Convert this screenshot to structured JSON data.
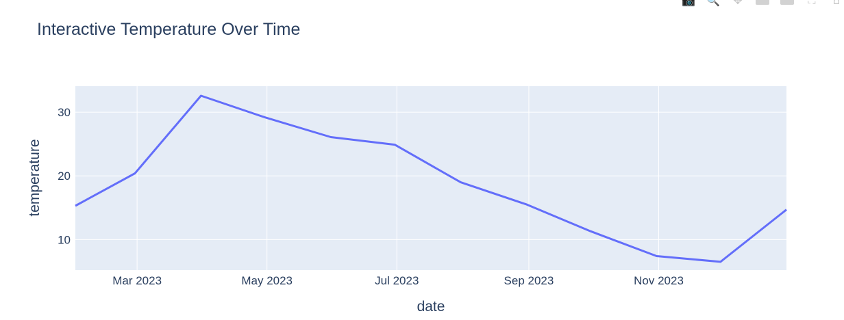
{
  "chart_data": {
    "type": "line",
    "title": "Interactive Temperature Over Time",
    "xlabel": "date",
    "ylabel": "temperature",
    "x": [
      "2023-01-31",
      "2023-02-28",
      "2023-03-31",
      "2023-04-30",
      "2023-05-31",
      "2023-06-30",
      "2023-07-31",
      "2023-08-31",
      "2023-09-30",
      "2023-10-31",
      "2023-11-30",
      "2023-12-31"
    ],
    "series": [
      {
        "values": [
          15.3,
          20.4,
          32.6,
          29.2,
          26.1,
          24.9,
          19.0,
          15.5,
          11.3,
          7.4,
          6.5,
          14.7
        ]
      }
    ],
    "xlim": [
      "2023-01-31",
      "2023-12-31"
    ],
    "ylim": [
      5.2,
      34.1
    ],
    "x_ticks": [
      {
        "date": "2023-03-01",
        "label": "Mar 2023"
      },
      {
        "date": "2023-05-01",
        "label": "May 2023"
      },
      {
        "date": "2023-07-01",
        "label": "Jul 2023"
      },
      {
        "date": "2023-09-01",
        "label": "Sep 2023"
      },
      {
        "date": "2023-11-01",
        "label": "Nov 2023"
      }
    ],
    "y_ticks": [
      10,
      20,
      30
    ],
    "grid": true,
    "colors": {
      "line": "#636efa",
      "plot_bg": "#e5ecf6",
      "grid": "#ffffff",
      "text": "#2a3f5f"
    }
  },
  "modebar": {
    "buttons": [
      {
        "name": "camera-icon",
        "glyph": "📷"
      },
      {
        "name": "zoom-icon",
        "glyph": "🔍"
      },
      {
        "name": "pan-icon",
        "glyph": "✥"
      },
      {
        "name": "zoom-in-icon",
        "glyph": ""
      },
      {
        "name": "zoom-out-icon",
        "glyph": ""
      },
      {
        "name": "autoscale-icon",
        "glyph": "⛶"
      },
      {
        "name": "reset-axes-icon",
        "glyph": "⌂"
      }
    ]
  }
}
